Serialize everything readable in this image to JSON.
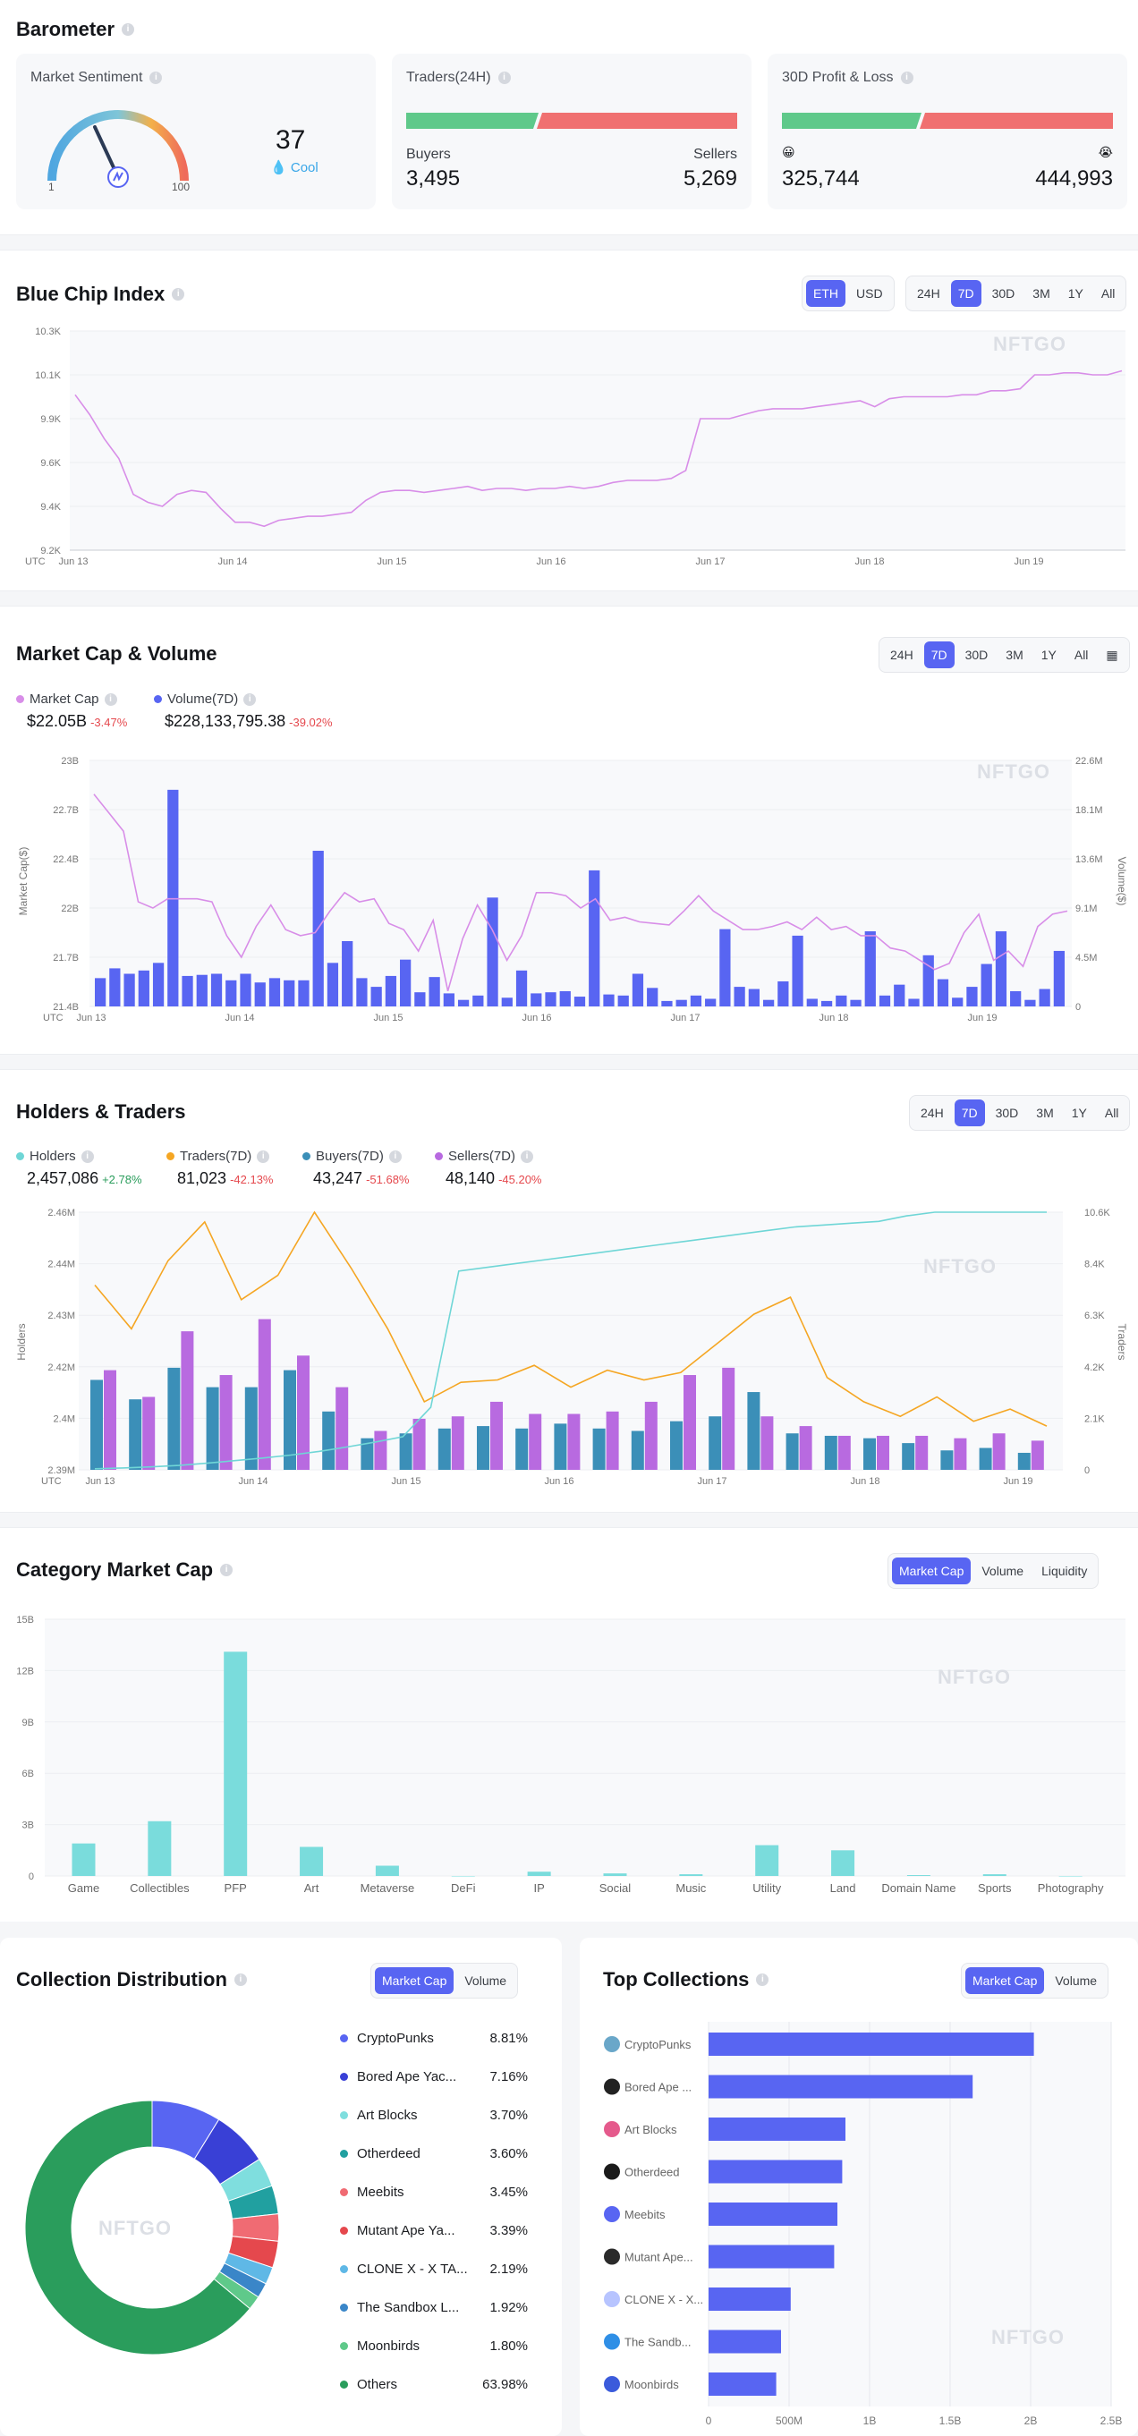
{
  "barometer": {
    "title": "Barometer",
    "sentiment": {
      "title": "Market Sentiment",
      "value": "37",
      "label": "Cool",
      "min": "1",
      "max": "100"
    },
    "traders": {
      "title": "Traders(24H)",
      "buyers_label": "Buyers",
      "sellers_label": "Sellers",
      "buyers": "3,495",
      "sellers": "5,269"
    },
    "pnl": {
      "title": "30D Profit & Loss",
      "profit": "325,744",
      "loss": "444,993"
    }
  },
  "bluechip": {
    "title": "Blue Chip Index",
    "currency_options": [
      "ETH",
      "USD"
    ],
    "currency_selected": "ETH",
    "range_options": [
      "24H",
      "7D",
      "30D",
      "3M",
      "1Y",
      "All"
    ],
    "range_selected": "7D",
    "watermark": "NFTGO"
  },
  "marketcap": {
    "title": "Market Cap & Volume",
    "range_options": [
      "24H",
      "7D",
      "30D",
      "3M",
      "1Y",
      "All"
    ],
    "range_selected": "7D",
    "legend": [
      {
        "name": "Market Cap",
        "value": "$22.05B",
        "change": "-3.47%",
        "color": "#d88ee8"
      },
      {
        "name": "Volume(7D)",
        "value": "$228,133,795.38",
        "change": "-39.02%",
        "color": "#5865f2"
      }
    ],
    "ylabel_left": "Market Cap($)",
    "ylabel_right": "Volume($)",
    "watermark": "NFTGO"
  },
  "holders": {
    "title": "Holders & Traders",
    "range_options": [
      "24H",
      "7D",
      "30D",
      "3M",
      "1Y",
      "All"
    ],
    "range_selected": "7D",
    "legend": [
      {
        "name": "Holders",
        "value": "2,457,086",
        "change": "+2.78%",
        "color": "#6fd6d6"
      },
      {
        "name": "Traders(7D)",
        "value": "81,023",
        "change": "-42.13%",
        "color": "#f5a623"
      },
      {
        "name": "Buyers(7D)",
        "value": "43,247",
        "change": "-51.68%",
        "color": "#3b8fb8"
      },
      {
        "name": "Sellers(7D)",
        "value": "48,140",
        "change": "-45.20%",
        "color": "#b86ae0"
      }
    ],
    "ylabel_left": "Holders",
    "ylabel_right": "Traders",
    "watermark": "NFTGO"
  },
  "category": {
    "title": "Category Market Cap",
    "tabs": [
      "Market Cap",
      "Volume",
      "Liquidity"
    ],
    "tab_selected": "Market Cap",
    "watermark": "NFTGO"
  },
  "distribution": {
    "title": "Collection Distribution",
    "tabs": [
      "Market Cap",
      "Volume"
    ],
    "tab_selected": "Market Cap",
    "watermark": "NFTGO",
    "items": [
      {
        "name": "CryptoPunks",
        "pct": "8.81%",
        "color": "#5865f2"
      },
      {
        "name": "Bored Ape Yac...",
        "pct": "7.16%",
        "color": "#3940d6"
      },
      {
        "name": "Art Blocks",
        "pct": "3.70%",
        "color": "#7fdede"
      },
      {
        "name": "Otherdeed",
        "pct": "3.60%",
        "color": "#21a0a0"
      },
      {
        "name": "Meebits",
        "pct": "3.45%",
        "color": "#f06b73"
      },
      {
        "name": "Mutant Ape Ya...",
        "pct": "3.39%",
        "color": "#e5484d"
      },
      {
        "name": "CLONE X - X TA...",
        "pct": "2.19%",
        "color": "#5fb8e6"
      },
      {
        "name": "The Sandbox L...",
        "pct": "1.92%",
        "color": "#3a86c8"
      },
      {
        "name": "Moonbirds",
        "pct": "1.80%",
        "color": "#5fc98a"
      },
      {
        "name": "Others",
        "pct": "63.98%",
        "color": "#2a9d5c"
      }
    ]
  },
  "top": {
    "title": "Top Collections",
    "tabs": [
      "Market Cap",
      "Volume"
    ],
    "tab_selected": "Market Cap",
    "watermark": "NFTGO"
  },
  "chart_data": [
    {
      "id": "bluechip",
      "type": "line",
      "title": "Blue Chip Index",
      "x_ticks": [
        "Jun 13",
        "Jun 14",
        "Jun 15",
        "Jun 16",
        "Jun 17",
        "Jun 18",
        "Jun 19"
      ],
      "x_prefix": "UTC",
      "y_ticks": [
        "9.2K",
        "9.4K",
        "9.6K",
        "9.9K",
        "10.1K",
        "10.3K"
      ],
      "ylim": [
        9200,
        10300
      ],
      "series": [
        {
          "color": "#d88ee8",
          "values": [
            9980,
            9880,
            9760,
            9660,
            9480,
            9440,
            9420,
            9480,
            9500,
            9490,
            9410,
            9340,
            9340,
            9320,
            9350,
            9360,
            9370,
            9370,
            9380,
            9390,
            9450,
            9490,
            9500,
            9500,
            9490,
            9500,
            9510,
            9520,
            9500,
            9510,
            9510,
            9500,
            9510,
            9510,
            9520,
            9510,
            9520,
            9540,
            9550,
            9550,
            9550,
            9560,
            9600,
            9860,
            9860,
            9860,
            9880,
            9900,
            9910,
            9910,
            9910,
            9920,
            9930,
            9940,
            9950,
            9920,
            9960,
            9970,
            9970,
            9970,
            9970,
            9980,
            9980,
            10000,
            10000,
            10010,
            10080,
            10080,
            10090,
            10090,
            10080,
            10080,
            10100
          ]
        }
      ]
    },
    {
      "id": "marketcap",
      "type": "bar+line",
      "title": "Market Cap & Volume",
      "x_ticks": [
        "Jun 13",
        "Jun 14",
        "Jun 15",
        "Jun 16",
        "Jun 17",
        "Jun 18",
        "Jun 19"
      ],
      "x_prefix": "UTC",
      "y_left_ticks": [
        "21.4B",
        "21.7B",
        "22B",
        "22.4B",
        "22.7B",
        "23B"
      ],
      "y_left_lim": [
        21.4,
        23.0
      ],
      "y_right_ticks": [
        "0",
        "4.5M",
        "9.1M",
        "13.6M",
        "18.1M",
        "22.6M"
      ],
      "y_right_lim": [
        0,
        22.6
      ],
      "series": [
        {
          "name": "Market Cap",
          "color": "#d88ee8",
          "unit": "B",
          "values": [
            22.78,
            22.66,
            22.54,
            22.08,
            22.04,
            22.1,
            22.1,
            22.1,
            22.08,
            21.86,
            21.72,
            21.92,
            22.06,
            21.9,
            21.86,
            21.88,
            22.02,
            22.14,
            22.08,
            22.1,
            21.94,
            21.9,
            21.76,
            21.96,
            21.5,
            21.84,
            22.06,
            21.9,
            21.7,
            21.86,
            22.14,
            22.14,
            22.12,
            22.04,
            22.1,
            21.96,
            21.98,
            21.95,
            21.94,
            21.93,
            22.02,
            22.12,
            22.02,
            21.96,
            21.9,
            21.9,
            21.92,
            21.95,
            21.9,
            21.98,
            21.9,
            21.92,
            21.86,
            21.86,
            21.78,
            21.76,
            21.7,
            21.64,
            21.68,
            21.88,
            22.0,
            21.7,
            21.76,
            21.66,
            21.92,
            22.0,
            22.02
          ]
        },
        {
          "name": "Volume(7D)",
          "color": "#5865f2",
          "unit": "M",
          "values": [
            2.6,
            3.5,
            3.0,
            3.3,
            4.0,
            19.9,
            2.8,
            2.9,
            3.0,
            2.4,
            3.0,
            2.2,
            2.6,
            2.4,
            2.4,
            14.3,
            4.0,
            6.0,
            2.6,
            1.8,
            2.8,
            4.3,
            1.3,
            2.7,
            1.2,
            0.6,
            1.0,
            10.0,
            0.8,
            3.3,
            1.2,
            1.3,
            1.4,
            0.9,
            12.5,
            1.1,
            1.0,
            3.0,
            1.7,
            0.5,
            0.6,
            1.0,
            0.7,
            7.1,
            1.8,
            1.6,
            0.6,
            2.3,
            6.5,
            0.7,
            0.5,
            1.0,
            0.6,
            6.9,
            1.0,
            2.0,
            0.7,
            4.7,
            2.5,
            0.8,
            1.8,
            3.9,
            6.9,
            1.4,
            0.6,
            1.6,
            5.1
          ]
        }
      ]
    },
    {
      "id": "holders",
      "type": "bar+line",
      "title": "Holders & Traders",
      "x_ticks": [
        "Jun 13",
        "Jun 14",
        "Jun 15",
        "Jun 16",
        "Jun 17",
        "Jun 18",
        "Jun 19"
      ],
      "x_prefix": "UTC",
      "y_left_ticks": [
        "2.39M",
        "2.4M",
        "2.42M",
        "2.43M",
        "2.44M",
        "2.46M"
      ],
      "y_left_lim": [
        2.39,
        2.46
      ],
      "y_right_ticks": [
        "0",
        "2.1K",
        "4.2K",
        "6.3K",
        "8.4K",
        "10.6K"
      ],
      "y_right_lim": [
        0,
        10.6
      ],
      "series": [
        {
          "name": "Holders",
          "color": "#6fd6d6",
          "values": [
            2.3903,
            2.3905,
            2.3908,
            2.3912,
            2.3918,
            2.3925,
            2.3932,
            2.394,
            2.395,
            2.3962,
            2.3975,
            2.399,
            2.407,
            2.444,
            2.445,
            2.446,
            2.447,
            2.448,
            2.449,
            2.45,
            2.451,
            2.452,
            2.453,
            2.454,
            2.455,
            2.456,
            2.4565,
            2.457,
            2.4575,
            2.459,
            2.46,
            2.46,
            2.46,
            2.46,
            2.46
          ]
        },
        {
          "name": "Traders(7D)",
          "color": "#f5a623",
          "values": [
            7.6,
            5.8,
            8.6,
            10.2,
            7.0,
            8.0,
            10.6,
            8.3,
            5.8,
            2.8,
            3.6,
            3.7,
            4.3,
            3.4,
            4.1,
            3.7,
            4.0,
            5.2,
            6.4,
            7.1,
            3.8,
            2.8,
            2.2,
            3.0,
            2.0,
            2.5,
            1.8
          ]
        },
        {
          "name": "Buyers(7D)",
          "color": "#3b8fb8",
          "values": [
            3.7,
            2.9,
            4.2,
            3.4,
            3.4,
            4.1,
            2.4,
            1.3,
            1.5,
            1.7,
            1.8,
            1.7,
            1.9,
            1.7,
            1.6,
            2.0,
            2.2,
            3.2,
            1.5,
            1.4,
            1.3,
            1.1,
            0.8,
            0.9,
            0.7
          ]
        },
        {
          "name": "Sellers(7D)",
          "color": "#b86ae0",
          "values": [
            4.1,
            3.0,
            5.7,
            3.9,
            6.2,
            4.7,
            3.4,
            1.6,
            2.1,
            2.2,
            2.8,
            2.3,
            2.3,
            2.4,
            2.8,
            3.9,
            4.2,
            2.2,
            1.8,
            1.4,
            1.4,
            1.4,
            1.3,
            1.5,
            1.2
          ]
        }
      ]
    },
    {
      "id": "category",
      "type": "bar",
      "title": "Category Market Cap",
      "categories": [
        "Game",
        "Collectibles",
        "PFP",
        "Art",
        "Metaverse",
        "DeFi",
        "IP",
        "Social",
        "Music",
        "Utility",
        "Land",
        "Domain Name",
        "Sports",
        "Photography"
      ],
      "values": [
        1.9,
        3.2,
        13.1,
        1.7,
        0.6,
        0.0,
        0.25,
        0.15,
        0.1,
        1.8,
        1.5,
        0.05,
        0.1,
        0.0
      ],
      "unit": "B",
      "y_ticks": [
        "0",
        "3B",
        "6B",
        "9B",
        "12B",
        "15B"
      ],
      "ylim": [
        0,
        15
      ],
      "color": "#7adcdc"
    },
    {
      "id": "distribution",
      "type": "pie",
      "title": "Collection Distribution",
      "labels": [
        "CryptoPunks",
        "Bored Ape Yac...",
        "Art Blocks",
        "Otherdeed",
        "Meebits",
        "Mutant Ape Ya...",
        "CLONE X - X TA...",
        "The Sandbox L...",
        "Moonbirds",
        "Others"
      ],
      "values": [
        8.81,
        7.16,
        3.7,
        3.6,
        3.45,
        3.39,
        2.19,
        1.92,
        1.8,
        63.98
      ]
    },
    {
      "id": "top",
      "type": "bar",
      "title": "Top Collections",
      "orientation": "horizontal",
      "categories": [
        "CryptoPunks",
        "Bored Ape ...",
        "Art Blocks",
        "Otherdeed",
        "Meebits",
        "Mutant Ape...",
        "CLONE X - X...",
        "The Sandb...",
        "Moonbirds"
      ],
      "values": [
        2.02,
        1.64,
        0.85,
        0.83,
        0.8,
        0.78,
        0.51,
        0.45,
        0.42
      ],
      "unit": "B",
      "x_ticks": [
        "0",
        "500M",
        "1B",
        "1.5B",
        "2B",
        "2.5B"
      ],
      "xlim": [
        0,
        2.5
      ],
      "color": "#5865f2"
    }
  ]
}
